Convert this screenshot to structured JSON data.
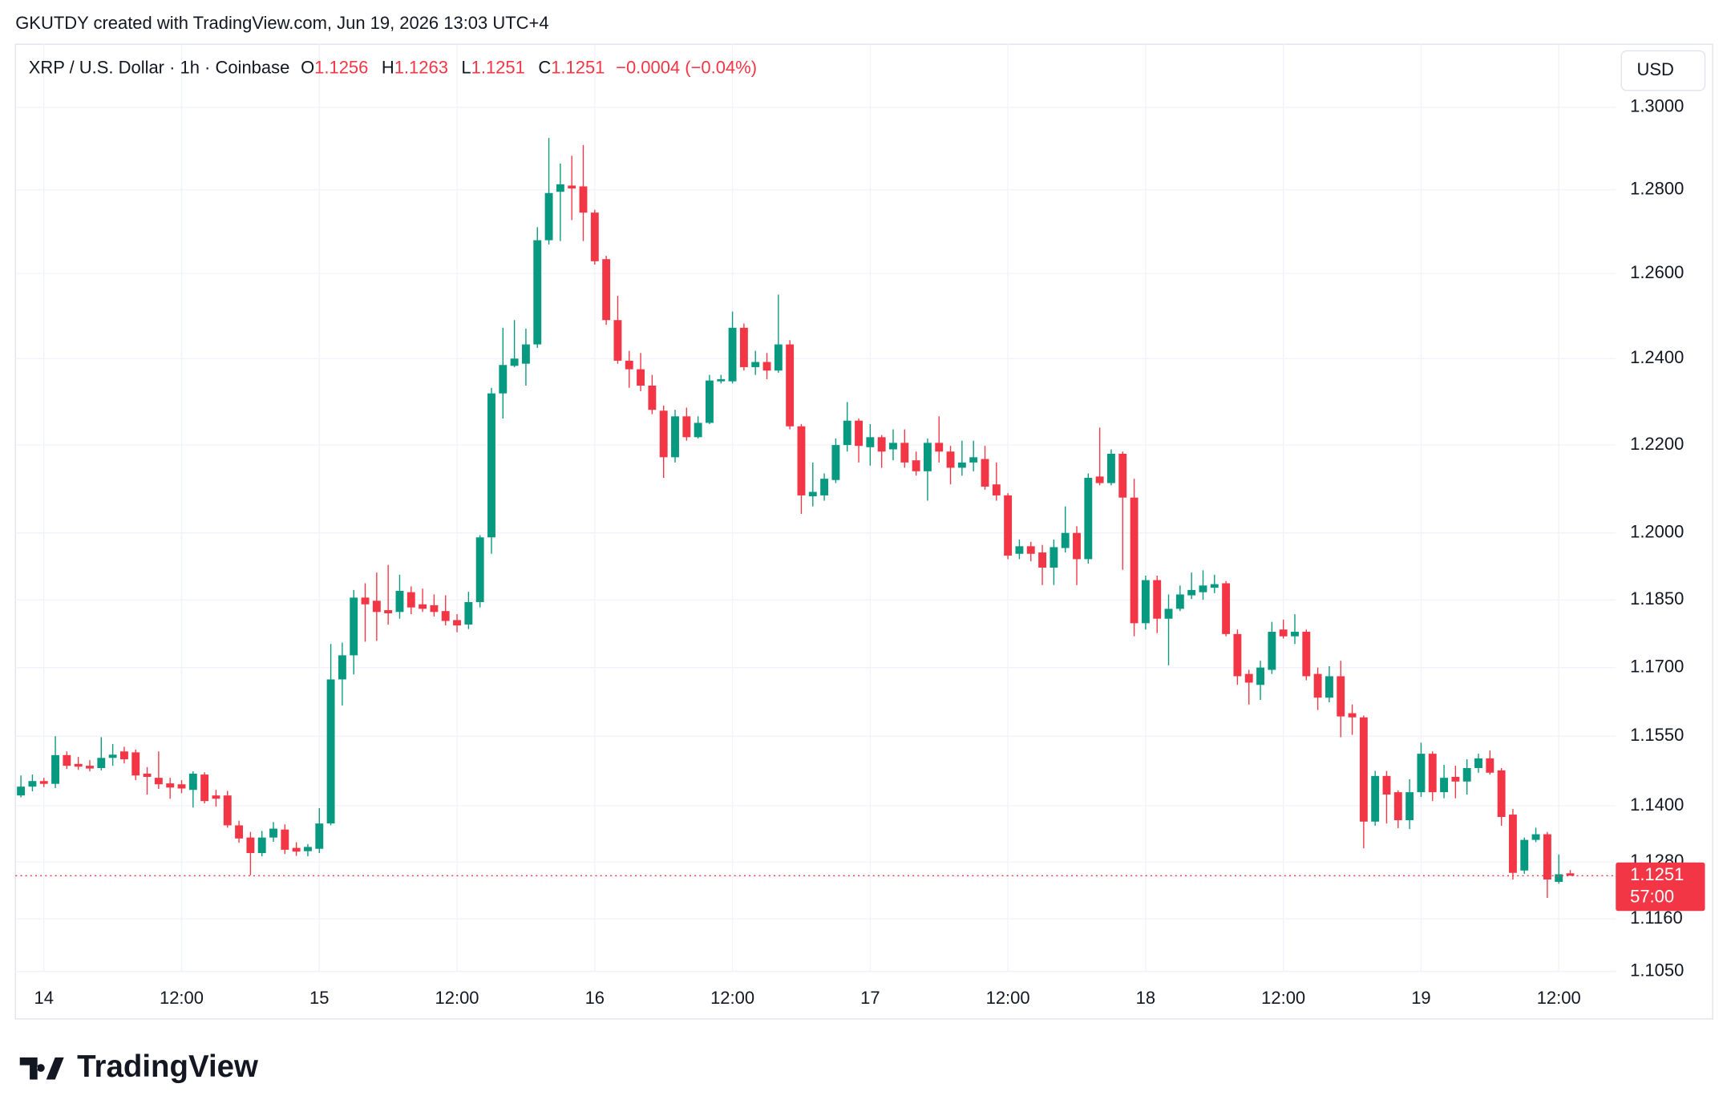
{
  "header": {
    "text": "GKUTDY created with TradingView.com, Jun 19, 2026 13:03 UTC+4"
  },
  "footer": {
    "logo": "TradingView"
  },
  "chart_data": {
    "type": "candlestick",
    "title": "XRP / U.S. Dollar · 1h · Coinbase",
    "ohlc_keys": [
      "O",
      "H",
      "L",
      "C"
    ],
    "change_label": "−0.0004 (−0.04%)",
    "currency": "USD",
    "countdown": "57:00",
    "up_color": "#089981",
    "down_color": "#f23645",
    "log": true,
    "grid": true,
    "ylim": [
      1.105,
      1.3155
    ],
    "yticks": [
      {
        "value": 1.3,
        "label": "1.3000"
      },
      {
        "value": 1.28,
        "label": "1.2800"
      },
      {
        "value": 1.26,
        "label": "1.2600"
      },
      {
        "value": 1.24,
        "label": "1.2400"
      },
      {
        "value": 1.22,
        "label": "1.2200"
      },
      {
        "value": 1.2,
        "label": "1.2000"
      },
      {
        "value": 1.185,
        "label": "1.1850"
      },
      {
        "value": 1.17,
        "label": "1.1700"
      },
      {
        "value": 1.155,
        "label": "1.1550"
      },
      {
        "value": 1.14,
        "label": "1.1400"
      },
      {
        "value": 1.128,
        "label": "1.1280"
      },
      {
        "value": 1.116,
        "label": "1.1160"
      },
      {
        "value": 1.105,
        "label": "1.1050"
      }
    ],
    "categories": [
      null,
      null,
      "14",
      null,
      null,
      null,
      null,
      null,
      null,
      null,
      null,
      null,
      null,
      null,
      "12:00",
      null,
      null,
      null,
      null,
      null,
      null,
      null,
      null,
      null,
      null,
      null,
      "15",
      null,
      null,
      null,
      null,
      null,
      null,
      null,
      null,
      null,
      null,
      null,
      "12:00",
      null,
      null,
      null,
      null,
      null,
      null,
      null,
      null,
      null,
      null,
      null,
      "16",
      null,
      null,
      null,
      null,
      null,
      null,
      null,
      null,
      null,
      null,
      null,
      "12:00",
      null,
      null,
      null,
      null,
      null,
      null,
      null,
      null,
      null,
      null,
      null,
      "17",
      null,
      null,
      null,
      null,
      null,
      null,
      null,
      null,
      null,
      null,
      null,
      "12:00",
      null,
      null,
      null,
      null,
      null,
      null,
      null,
      null,
      null,
      null,
      null,
      "18",
      null,
      null,
      null,
      null,
      null,
      null,
      null,
      null,
      null,
      null,
      null,
      "12:00",
      null,
      null,
      null,
      null,
      null,
      null,
      null,
      null,
      null,
      null,
      null,
      "19",
      null,
      null,
      null,
      null,
      null,
      null,
      null,
      null,
      null,
      null,
      null,
      "12:00",
      null
    ],
    "open": [
      1.1422,
      1.1441,
      1.1453,
      1.1447,
      1.1509,
      1.149,
      1.1486,
      1.1481,
      1.1503,
      1.1517,
      1.1515,
      1.1469,
      1.146,
      1.1448,
      1.1446,
      1.1434,
      1.1467,
      1.1422,
      1.1422,
      1.1358,
      1.1332,
      1.1299,
      1.1332,
      1.1349,
      1.131,
      1.1303,
      1.1308,
      1.1362,
      1.1674,
      1.1727,
      1.1855,
      1.1848,
      1.1827,
      1.1823,
      1.1867,
      1.184,
      1.1838,
      1.1825,
      1.1805,
      1.1795,
      1.1845,
      1.199,
      1.2319,
      1.2383,
      1.2388,
      1.2433,
      1.2679,
      1.2795,
      1.281,
      1.2808,
      1.2745,
      1.2634,
      1.249,
      1.2395,
      1.2375,
      1.2337,
      1.2279,
      1.2172,
      1.2266,
      1.2218,
      1.2251,
      1.2347,
      1.2347,
      1.2472,
      1.238,
      1.2392,
      1.2372,
      1.2433,
      1.2243,
      1.2083,
      1.2085,
      1.212,
      1.22,
      1.2256,
      1.2195,
      1.2218,
      1.219,
      1.2205,
      1.2165,
      1.214,
      1.2205,
      1.2185,
      1.2148,
      1.216,
      1.2168,
      1.211,
      1.2085,
      1.1953,
      1.197,
      1.1956,
      1.1922,
      1.1966,
      1.2,
      1.1941,
      1.2128,
      1.2113,
      1.218,
      1.208,
      1.1798,
      1.1894,
      1.1808,
      1.183,
      1.186,
      1.1867,
      1.1877,
      1.1887,
      1.1774,
      1.1686,
      1.1662,
      1.1695,
      1.1784,
      1.1769,
      1.1779,
      1.1686,
      1.1634,
      1.1681,
      1.16,
      1.1591,
      1.1366,
      1.1464,
      1.1429,
      1.1369,
      1.1429,
      1.1512,
      1.1429,
      1.1462,
      1.1452,
      1.1481,
      1.1502,
      1.1476,
      1.1381,
      1.1262,
      1.1327,
      1.1339,
      1.1238,
      1.1256
    ],
    "high": [
      1.1465,
      1.1467,
      1.146,
      1.155,
      1.1517,
      1.1505,
      1.1498,
      1.1548,
      1.1533,
      1.1527,
      1.1521,
      1.1483,
      1.1517,
      1.146,
      1.1455,
      1.1474,
      1.1472,
      1.1434,
      1.1432,
      1.1368,
      1.1344,
      1.1346,
      1.1365,
      1.136,
      1.1322,
      1.1318,
      1.1395,
      1.1752,
      1.1755,
      1.1872,
      1.1887,
      1.1911,
      1.1928,
      1.1906,
      1.188,
      1.1875,
      1.1862,
      1.186,
      1.1818,
      1.1868,
      1.1995,
      1.2332,
      1.2472,
      1.249,
      1.247,
      1.271,
      1.2925,
      1.2863,
      1.2882,
      1.2908,
      1.2752,
      1.2642,
      1.2547,
      1.2418,
      1.2413,
      1.2362,
      1.2291,
      1.2281,
      1.2286,
      1.2266,
      1.2362,
      1.2362,
      1.251,
      1.2482,
      1.2418,
      1.2413,
      1.255,
      1.2443,
      1.2248,
      1.216,
      1.2135,
      1.2215,
      1.2299,
      1.2261,
      1.2248,
      1.2223,
      1.2236,
      1.2236,
      1.2185,
      1.2215,
      1.2266,
      1.2198,
      1.221,
      1.221,
      1.2198,
      1.216,
      1.209,
      1.1985,
      1.198,
      1.1973,
      1.1985,
      1.206,
      1.2015,
      1.2135,
      1.224,
      1.219,
      1.2185,
      1.2123,
      1.1904,
      1.1904,
      1.1862,
      1.1882,
      1.1911,
      1.1916,
      1.1906,
      1.1892,
      1.1784,
      1.1695,
      1.1715,
      1.1801,
      1.1806,
      1.1818,
      1.1784,
      1.17,
      1.1703,
      1.1715,
      1.1619,
      1.1595,
      1.1475,
      1.1475,
      1.1433,
      1.1457,
      1.1536,
      1.1517,
      1.1488,
      1.1486,
      1.15,
      1.1512,
      1.1519,
      1.1481,
      1.1393,
      1.1332,
      1.1353,
      1.1344,
      1.1296,
      1.1263
    ],
    "low": [
      1.1418,
      1.1431,
      1.144,
      1.1438,
      1.1479,
      1.1477,
      1.1474,
      1.1476,
      1.1486,
      1.1491,
      1.1455,
      1.1424,
      1.1436,
      1.1415,
      1.1427,
      1.1396,
      1.1405,
      1.1398,
      1.1353,
      1.1321,
      1.1252,
      1.1292,
      1.1323,
      1.1297,
      1.1293,
      1.1292,
      1.1299,
      1.1358,
      1.1617,
      1.1685,
      1.1757,
      1.1759,
      1.1795,
      1.1808,
      1.1818,
      1.1823,
      1.1813,
      1.1793,
      1.1778,
      1.1785,
      1.1833,
      1.1953,
      1.2261,
      1.238,
      1.2337,
      1.2425,
      1.2669,
      1.2677,
      1.2727,
      1.2677,
      1.2621,
      1.2479,
      1.2388,
      1.2332,
      1.2324,
      1.2271,
      1.2125,
      1.216,
      1.221,
      1.2215,
      1.2248,
      1.2342,
      1.2342,
      1.2372,
      1.2362,
      1.2352,
      1.2367,
      1.2236,
      1.2043,
      1.206,
      1.2073,
      1.2113,
      1.2185,
      1.216,
      1.2153,
      1.2148,
      1.2165,
      1.2148,
      1.213,
      1.2073,
      1.216,
      1.211,
      1.213,
      1.214,
      1.2098,
      1.2073,
      1.1941,
      1.1941,
      1.1936,
      1.1883,
      1.1883,
      1.1956,
      1.1883,
      1.1931,
      1.2108,
      1.2108,
      1.1917,
      1.1769,
      1.1784,
      1.1776,
      1.1705,
      1.1825,
      1.1852,
      1.185,
      1.1865,
      1.1769,
      1.1662,
      1.1619,
      1.1629,
      1.1686,
      1.1764,
      1.1752,
      1.1672,
      1.1607,
      1.1624,
      1.1548,
      1.1553,
      1.1309,
      1.1357,
      1.1362,
      1.1352,
      1.135,
      1.1419,
      1.141,
      1.1416,
      1.1416,
      1.1424,
      1.1471,
      1.1467,
      1.1357,
      1.1243,
      1.1255,
      1.1322,
      1.1204,
      1.1234,
      1.1251
    ],
    "close": [
      1.1441,
      1.1453,
      1.1447,
      1.1509,
      1.1486,
      1.1484,
      1.148,
      1.1503,
      1.151,
      1.15,
      1.1465,
      1.1462,
      1.1446,
      1.1439,
      1.1437,
      1.1469,
      1.141,
      1.1415,
      1.1358,
      1.133,
      1.1299,
      1.1332,
      1.1351,
      1.1306,
      1.1302,
      1.1312,
      1.1362,
      1.1674,
      1.1727,
      1.1855,
      1.184,
      1.1823,
      1.182,
      1.187,
      1.1833,
      1.183,
      1.1823,
      1.1803,
      1.1793,
      1.1845,
      1.199,
      1.2319,
      1.2385,
      1.24,
      1.2433,
      1.2679,
      1.2792,
      1.2813,
      1.2803,
      1.2745,
      1.2629,
      1.249,
      1.2395,
      1.2375,
      1.2337,
      1.2281,
      1.2172,
      1.2266,
      1.2218,
      1.2251,
      1.2349,
      1.2352,
      1.2472,
      1.238,
      1.2392,
      1.2372,
      1.2433,
      1.2243,
      1.2085,
      1.2093,
      1.2123,
      1.22,
      1.2256,
      1.2198,
      1.2218,
      1.2185,
      1.2205,
      1.216,
      1.214,
      1.2205,
      1.2185,
      1.2148,
      1.216,
      1.2172,
      1.2105,
      1.2085,
      1.1949,
      1.197,
      1.1953,
      1.1922,
      1.1968,
      1.2,
      1.1941,
      1.2125,
      1.2113,
      1.218,
      1.208,
      1.1798,
      1.1894,
      1.1808,
      1.183,
      1.1862,
      1.1872,
      1.1882,
      1.1885,
      1.1774,
      1.1681,
      1.1667,
      1.17,
      1.1779,
      1.1769,
      1.1779,
      1.1681,
      1.1634,
      1.1681,
      1.1593,
      1.1591,
      1.1366,
      1.1464,
      1.1424,
      1.1369,
      1.1429,
      1.1512,
      1.1429,
      1.146,
      1.1452,
      1.1481,
      1.1502,
      1.1471,
      1.1376,
      1.1257,
      1.1327,
      1.1339,
      1.1243,
      1.1254,
      1.1251
    ]
  }
}
